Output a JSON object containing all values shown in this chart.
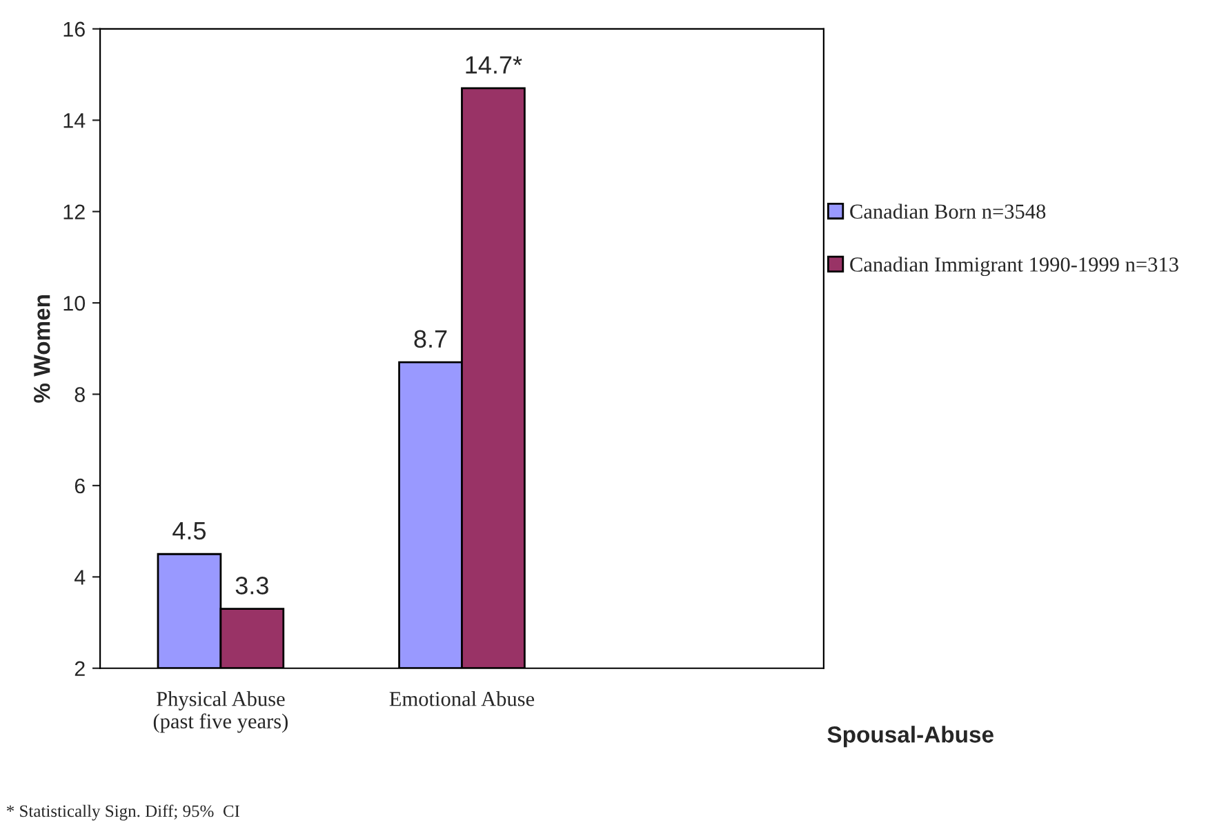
{
  "chart_data": {
    "type": "bar",
    "categories": [
      "Physical Abuse\n(past five years)",
      "Emotional Abuse",
      null
    ],
    "series": [
      {
        "name": "Canadian Born n=3548",
        "color": "#9999ff",
        "values": [
          4.5,
          8.7,
          null
        ],
        "value_labels": [
          "4.5",
          "8.7",
          null
        ]
      },
      {
        "name": "Canadian Immigrant 1990-1999 n=313",
        "color": "#993366",
        "values": [
          3.3,
          14.7,
          null
        ],
        "value_labels": [
          "3.3",
          "14.7*",
          null
        ]
      }
    ],
    "xlabel": "Spousal-Abuse",
    "ylabel": "% Women",
    "ylim": [
      2,
      16
    ],
    "yticks": [
      2,
      4,
      6,
      8,
      10,
      12,
      14,
      16
    ],
    "grid": false,
    "legend": "right",
    "annotations": [
      "* Statistically Sign. Diff; 95%  CI"
    ]
  }
}
